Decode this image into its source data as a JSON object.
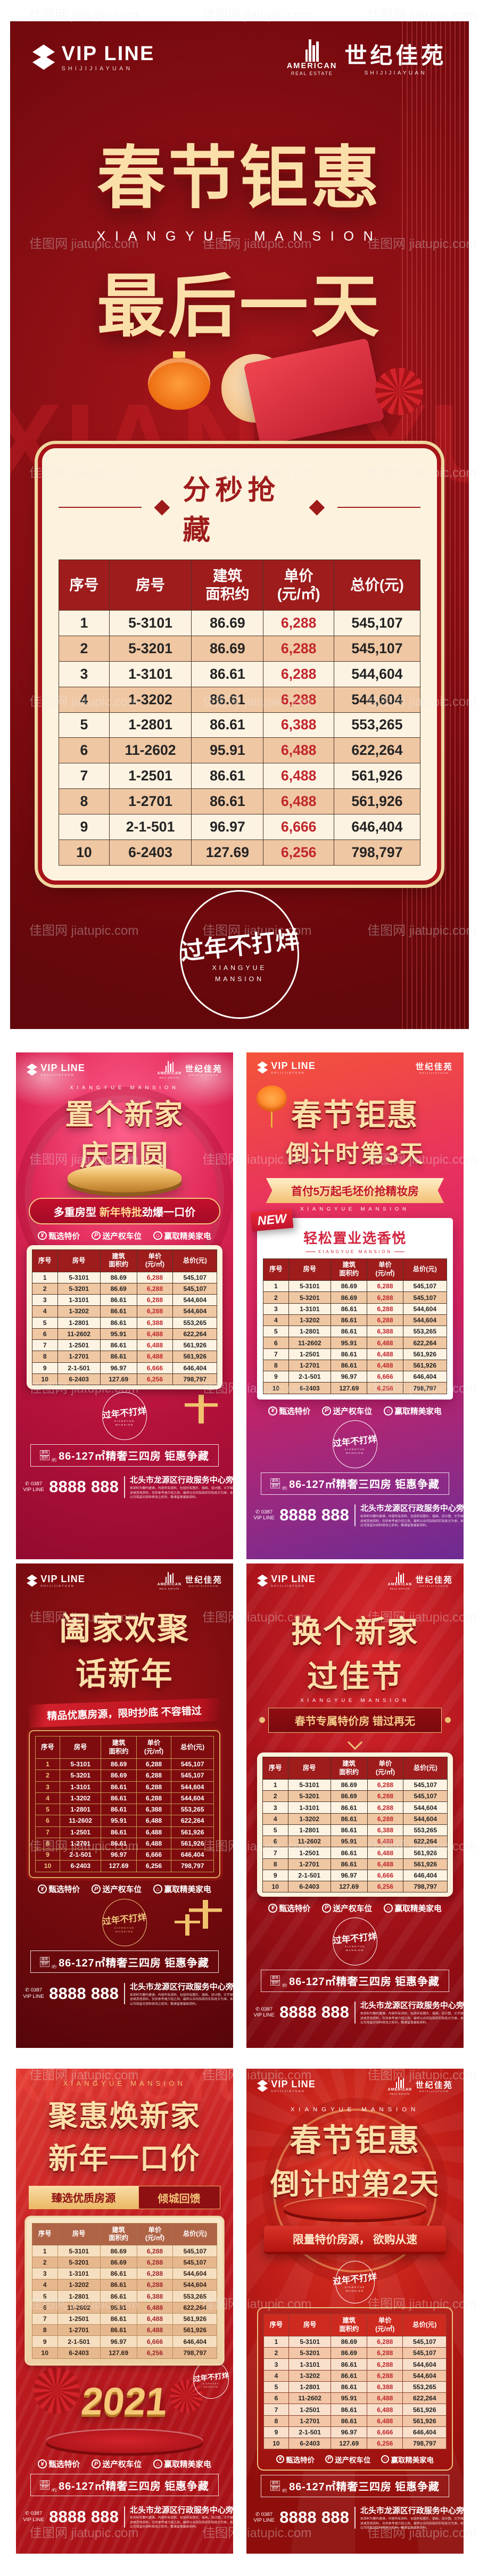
{
  "watermark": "佳图网 jiatupic.com",
  "brand": {
    "vip_line": "VIP LINE",
    "vip_sub": "SHIJIJIAYUAN",
    "cn_name": "世纪佳苑",
    "cn_sub": "SHIJIJIAYUAN",
    "en_top": "AMERICAN",
    "en_bottom": "REAL ESTATE"
  },
  "chart_data": {
    "type": "table",
    "title": "分秒抢藏",
    "categories": [
      "序号",
      "房号",
      "建筑面积约",
      "单价(元/㎡)",
      "总价(元)"
    ],
    "rows": [
      [
        "1",
        "5-3101",
        "86.69",
        "6,288",
        "545,107"
      ],
      [
        "2",
        "5-3201",
        "86.69",
        "6,288",
        "545,107"
      ],
      [
        "3",
        "1-3101",
        "86.61",
        "6,288",
        "544,604"
      ],
      [
        "4",
        "1-3202",
        "86.61",
        "6,288",
        "544,604"
      ],
      [
        "5",
        "1-2801",
        "86.61",
        "6,388",
        "553,265"
      ],
      [
        "6",
        "11-2602",
        "95.91",
        "6,488",
        "622,264"
      ],
      [
        "7",
        "1-2501",
        "86.61",
        "6,488",
        "561,926"
      ],
      [
        "8",
        "1-2701",
        "86.61",
        "6,488",
        "561,926"
      ],
      [
        "9",
        "2-1-501",
        "96.97",
        "6,666",
        "646,404"
      ],
      [
        "10",
        "6-2403",
        "127.69",
        "6,256",
        "798,797"
      ]
    ]
  },
  "table": {
    "headers": [
      "序号",
      "房号",
      "建筑\n面积约",
      "单价\n(元/㎡)",
      "总价(元)"
    ],
    "rows": [
      [
        "1",
        "5-3101",
        "86.69",
        "6,288",
        "545,107"
      ],
      [
        "2",
        "5-3201",
        "86.69",
        "6,288",
        "545,107"
      ],
      [
        "3",
        "1-3101",
        "86.61",
        "6,288",
        "544,604"
      ],
      [
        "4",
        "1-3202",
        "86.61",
        "6,288",
        "544,604"
      ],
      [
        "5",
        "1-2801",
        "86.61",
        "6,388",
        "553,265"
      ],
      [
        "6",
        "11-2602",
        "95.91",
        "6,488",
        "622,264"
      ],
      [
        "7",
        "1-2501",
        "86.61",
        "6,488",
        "561,926"
      ],
      [
        "8",
        "1-2701",
        "86.61",
        "6,488",
        "561,926"
      ],
      [
        "9",
        "2-1-501",
        "96.97",
        "6,666",
        "646,404"
      ],
      [
        "10",
        "6-2403",
        "127.69",
        "6,256",
        "798,797"
      ]
    ]
  },
  "common": {
    "mansion": "XIANGYUE MANSION",
    "bg_word": "XIANGYUE",
    "stamp_text": "过年不打烊",
    "stamp_sub1": "XIANGYUE",
    "stamp_sub2": "MANSION",
    "features": [
      {
        "icon": "¥",
        "label": "甄选特价"
      },
      {
        "icon": "P",
        "label": "送产权车位"
      },
      {
        "icon": "⌂",
        "label": "赢取精美家电"
      }
    ],
    "area_prefix_line1": "建筑",
    "area_prefix_line2": "面积",
    "area_per": "/约",
    "area_text": "86-127㎡精奢三四房 钜惠争藏",
    "phone_icon": "✆",
    "phone_code": "0387",
    "phone_label": "VIP LINE",
    "phone_number": "8888 888",
    "address": "北头市龙源区行政服务中心旁",
    "disclaimer": "本资料为要约邀请，内容所有资料、包括所有图片、插画、设计图、文字描述或其他资料，仅供参考或介绍之用，最终以合同及政府实际批文为准，本公司保留对资料修改之权利，敬请留意最新资料。"
  },
  "posters": {
    "p1": {
      "title1": "春节钜惠",
      "title2": "最后一天",
      "panel_title": "分秒抢藏"
    },
    "p2": {
      "title1": "置个新家",
      "title2": "庆团圆",
      "banner_pre": "多重房型 ",
      "banner_mid": "新年特批",
      "banner_post": "劲爆一口价"
    },
    "p3": {
      "title1": "春节钜惠",
      "title2": "倒计时第3天",
      "ribbon": "首付5万起毛坯价抢精妆房",
      "new_tag": "NEW",
      "panel_title": "轻松置业选香悦"
    },
    "p4": {
      "title1": "阖家欢聚",
      "title2": "话新年",
      "ribbon": "精品优惠房源，限时抄底 不容错过"
    },
    "p5": {
      "title1": "换个新家",
      "title2": "过佳节",
      "banner": "春节专属特价房 错过再无"
    },
    "p6": {
      "title1": "聚惠焕新家",
      "title2": "新年一口价",
      "banner_left": "臻选优质房源",
      "banner_right": "倾城回馈",
      "year": "2021"
    },
    "p7": {
      "title1": "春节钜惠",
      "title2": "倒计时第2天",
      "ribbon": "限量特价房源， 欲购从速"
    }
  }
}
